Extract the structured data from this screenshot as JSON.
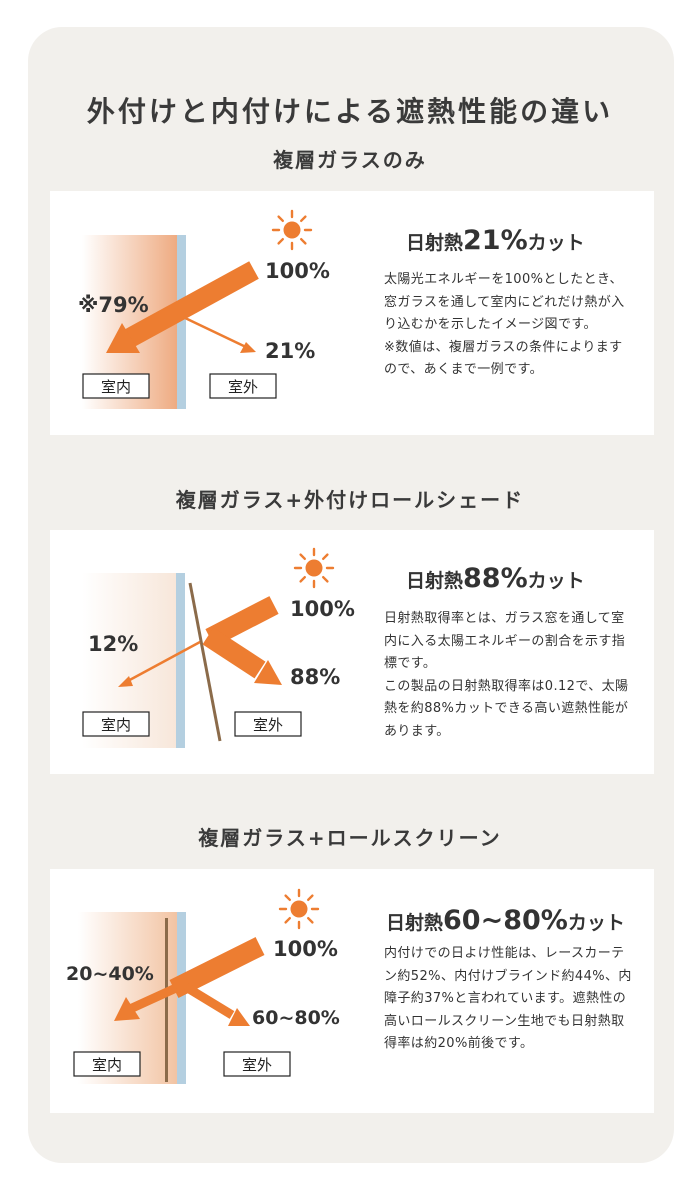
{
  "page_title": "外付けと内付けによる遮熱性能の違い",
  "colors": {
    "arrow": "#ed7d31",
    "glass": "#b4cfe0",
    "panel_bg": "#ffffff",
    "outer_bg": "#f2f0ec",
    "sun": "#ed7d31",
    "shade": "#8b6b4a"
  },
  "icons": [
    "sun-icon",
    "arrow-icon"
  ],
  "sections": [
    {
      "title": "複層ガラスのみ",
      "heading_prefix": "日射熱",
      "heading_value": "21%",
      "heading_suffix": "カット",
      "description": [
        "太陽光エネルギーを100%としたとき、窓ガラスを通して室内にどれだけ熱が入り込むかを示したイメージ図です。",
        "※数値は、複層ガラスの条件によりますので、あくまで一例です。"
      ],
      "incoming": "100%",
      "outgoing": "21%",
      "inside": "※79%",
      "label_inside": "室内",
      "label_outside": "室外"
    },
    {
      "title": "複層ガラス+外付けロールシェード",
      "heading_prefix": "日射熱",
      "heading_value": "88%",
      "heading_suffix": "カット",
      "description": [
        "日射熱取得率とは、ガラス窓を通して室内に入る太陽エネルギーの割合を示す指標です。",
        "この製品の日射熱取得率は0.12で、太陽熱を約88%カットできる高い遮熱性能があります。"
      ],
      "incoming": "100%",
      "outgoing": "88%",
      "inside": "12%",
      "label_inside": "室内",
      "label_outside": "室外"
    },
    {
      "title": "複層ガラス+ロールスクリーン",
      "heading_prefix": "日射熱",
      "heading_value": "60~80%",
      "heading_suffix": "カット",
      "description": [
        "内付けでの日よけ性能は、レースカーテン約52%、内付けブラインド約44%、内障子約37%と言われています。遮熱性の高いロールスクリーン生地でも日射熱取得率は約20%前後です。"
      ],
      "incoming": "100%",
      "outgoing": "60~80%",
      "inside": "20~40%",
      "label_inside": "室内",
      "label_outside": "室外"
    }
  ]
}
